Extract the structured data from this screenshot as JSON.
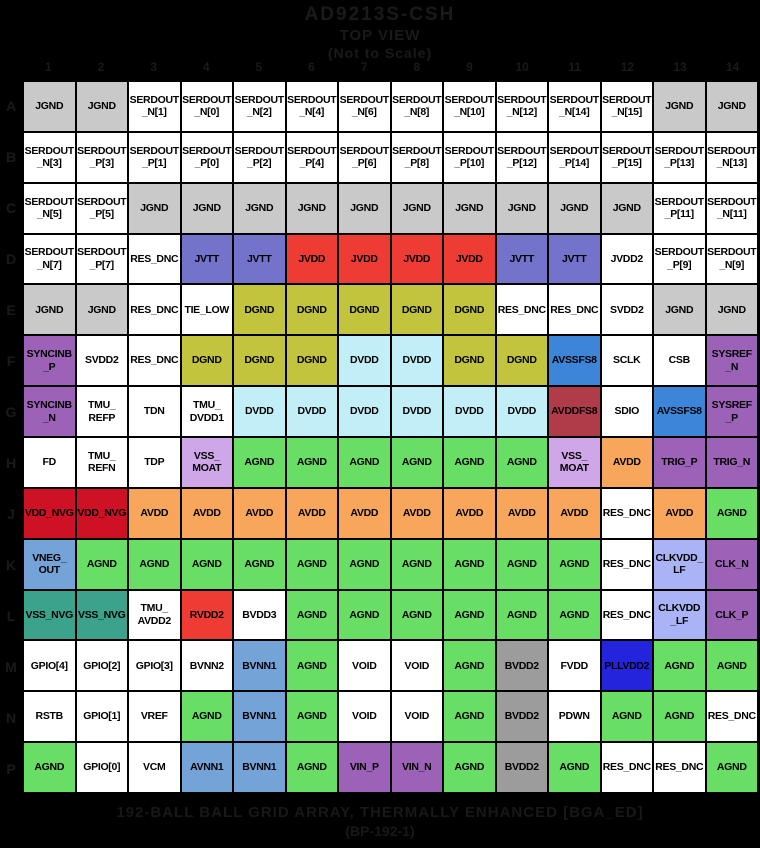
{
  "title": {
    "part": "AD9213S-CSH",
    "view": "TOP VIEW",
    "scale_note": "(Not to Scale)"
  },
  "footer": {
    "line1": "192-BALL BALL GRID ARRAY, THERMALLY ENHANCED [BGA_ED]",
    "line2": "(BP-192-1)"
  },
  "columns": [
    "1",
    "2",
    "3",
    "4",
    "5",
    "6",
    "7",
    "8",
    "9",
    "10",
    "11",
    "12",
    "13",
    "14"
  ],
  "rows": [
    "A",
    "B",
    "C",
    "D",
    "E",
    "F",
    "G",
    "H",
    "J",
    "K",
    "L",
    "M",
    "N",
    "P"
  ],
  "palette": {
    "gray": "#c9c9c9",
    "white": "#ffffff",
    "violet": "#7473cb",
    "red": "#ee3b33",
    "olive": "#c3c43e",
    "cyan": "#c2eef8",
    "purple": "#9c62b8",
    "blue": "#3c85d8",
    "maroon": "#b03c4a",
    "lilac": "#cfa6e8",
    "green": "#68de64",
    "orange": "#f7a65b",
    "crimson": "#ce1124",
    "steel": "#74a3d8",
    "teal": "#3ba38b",
    "periwinkle": "#a9b3f5",
    "darkgray": "#9c9c9c",
    "navy": "#2424dd"
  },
  "grid": {
    "labels": [
      [
        "JGND",
        "JGND",
        "SERDOUT\n_N[1]",
        "SERDOUT\n_N[0]",
        "SERDOUT\n_N[2]",
        "SERDOUT\n_N[4]",
        "SERDOUT\n_N[6]",
        "SERDOUT\n_N[8]",
        "SERDOUT\n_N[10]",
        "SERDOUT\n_N[12]",
        "SERDOUT\n_N[14]",
        "SERDOUT\n_N[15]",
        "JGND",
        "JGND"
      ],
      [
        "SERDOUT\n_N[3]",
        "SERDOUT\n_P[3]",
        "SERDOUT\n_P[1]",
        "SERDOUT\n_P[0]",
        "SERDOUT\n_P[2]",
        "SERDOUT\n_P[4]",
        "SERDOUT\n_P[6]",
        "SERDOUT\n_P[8]",
        "SERDOUT\n_P[10]",
        "SERDOUT\n_P[12]",
        "SERDOUT\n_P[14]",
        "SERDOUT\n_P[15]",
        "SERDOUT\n_P[13]",
        "SERDOUT\n_N[13]"
      ],
      [
        "SERDOUT\n_N[5]",
        "SERDOUT\n_P[5]",
        "JGND",
        "JGND",
        "JGND",
        "JGND",
        "JGND",
        "JGND",
        "JGND",
        "JGND",
        "JGND",
        "JGND",
        "SERDOUT\n_P[11]",
        "SERDOUT\n_N[11]"
      ],
      [
        "SERDOUT\n_N[7]",
        "SERDOUT\n_P[7]",
        "RES_DNC",
        "JVTT",
        "JVTT",
        "JVDD",
        "JVDD",
        "JVDD",
        "JVDD",
        "JVTT",
        "JVTT",
        "JVDD2",
        "SERDOUT\n_P[9]",
        "SERDOUT\n_N[9]"
      ],
      [
        "JGND",
        "JGND",
        "RES_DNC",
        "TIE_LOW",
        "DGND",
        "DGND",
        "DGND",
        "DGND",
        "DGND",
        "RES_DNC",
        "RES_DNC",
        "SVDD2",
        "JGND",
        "JGND"
      ],
      [
        "SYNCINB\n_P",
        "SVDD2",
        "RES_DNC",
        "DGND",
        "DGND",
        "DGND",
        "DVDD",
        "DVDD",
        "DGND",
        "DGND",
        "AVSSFS8",
        "SCLK",
        "CSB",
        "SYSREF\n_N"
      ],
      [
        "SYNCINB\n_N",
        "TMU_\nREFP",
        "TDN",
        "TMU_\nDVDD1",
        "DVDD",
        "DVDD",
        "DVDD",
        "DVDD",
        "DVDD",
        "DVDD",
        "AVDDFS8",
        "SDIO",
        "AVSSFS8",
        "SYSREF\n_P"
      ],
      [
        "FD",
        "TMU_\nREFN",
        "TDP",
        "VSS_\nMOAT",
        "AGND",
        "AGND",
        "AGND",
        "AGND",
        "AGND",
        "AGND",
        "VSS_\nMOAT",
        "AVDD",
        "TRIG_P",
        "TRIG_N"
      ],
      [
        "VDD_NVG",
        "VDD_NVG",
        "AVDD",
        "AVDD",
        "AVDD",
        "AVDD",
        "AVDD",
        "AVDD",
        "AVDD",
        "AVDD",
        "AVDD",
        "RES_DNC",
        "AVDD",
        "AGND"
      ],
      [
        "VNEG_\nOUT",
        "AGND",
        "AGND",
        "AGND",
        "AGND",
        "AGND",
        "AGND",
        "AGND",
        "AGND",
        "AGND",
        "AGND",
        "RES_DNC",
        "CLKVDD_\nLF",
        "CLK_N"
      ],
      [
        "VSS_NVG",
        "VSS_NVG",
        "TMU_\nAVDD2",
        "RVDD2",
        "BVDD3",
        "AGND",
        "AGND",
        "AGND",
        "AGND",
        "AGND",
        "AGND",
        "RES_DNC",
        "CLKVDD\n_LF",
        "CLK_P"
      ],
      [
        "GPIO[4]",
        "GPIO[2]",
        "GPIO[3]",
        "BVNN2",
        "BVNN1",
        "AGND",
        "VOID",
        "VOID",
        "AGND",
        "BVDD2",
        "FVDD",
        "PLLVDD2",
        "AGND",
        "AGND"
      ],
      [
        "RSTB",
        "GPIO[1]",
        "VREF",
        "AGND",
        "BVNN1",
        "AGND",
        "VOID",
        "VOID",
        "AGND",
        "BVDD2",
        "PDWN",
        "AGND",
        "AGND",
        "RES_DNC"
      ],
      [
        "AGND",
        "GPIO[0]",
        "VCM",
        "AVNN1",
        "BVNN1",
        "AGND",
        "VIN_P",
        "VIN_N",
        "AGND",
        "BVDD2",
        "AGND",
        "RES_DNC",
        "RES_DNC",
        "AGND"
      ]
    ],
    "fills": [
      [
        "gray",
        "gray",
        "white",
        "white",
        "white",
        "white",
        "white",
        "white",
        "white",
        "white",
        "white",
        "white",
        "gray",
        "gray"
      ],
      [
        "white",
        "white",
        "white",
        "white",
        "white",
        "white",
        "white",
        "white",
        "white",
        "white",
        "white",
        "white",
        "white",
        "white"
      ],
      [
        "white",
        "white",
        "gray",
        "gray",
        "gray",
        "gray",
        "gray",
        "gray",
        "gray",
        "gray",
        "gray",
        "gray",
        "white",
        "white"
      ],
      [
        "white",
        "white",
        "white",
        "violet",
        "violet",
        "red",
        "red",
        "red",
        "red",
        "violet",
        "violet",
        "white",
        "white",
        "white"
      ],
      [
        "gray",
        "gray",
        "white",
        "white",
        "olive",
        "olive",
        "olive",
        "olive",
        "olive",
        "white",
        "white",
        "white",
        "gray",
        "gray"
      ],
      [
        "purple",
        "white",
        "white",
        "olive",
        "olive",
        "olive",
        "cyan",
        "cyan",
        "olive",
        "olive",
        "blue",
        "white",
        "white",
        "purple"
      ],
      [
        "purple",
        "white",
        "white",
        "white",
        "cyan",
        "cyan",
        "cyan",
        "cyan",
        "cyan",
        "cyan",
        "maroon",
        "white",
        "blue",
        "purple"
      ],
      [
        "white",
        "white",
        "white",
        "lilac",
        "green",
        "green",
        "green",
        "green",
        "green",
        "green",
        "lilac",
        "orange",
        "purple",
        "purple"
      ],
      [
        "crimson",
        "crimson",
        "orange",
        "orange",
        "orange",
        "orange",
        "orange",
        "orange",
        "orange",
        "orange",
        "orange",
        "white",
        "orange",
        "green"
      ],
      [
        "steel",
        "green",
        "green",
        "green",
        "green",
        "green",
        "green",
        "green",
        "green",
        "green",
        "green",
        "white",
        "periwinkle",
        "purple"
      ],
      [
        "teal",
        "teal",
        "white",
        "red",
        "white",
        "green",
        "green",
        "green",
        "green",
        "green",
        "green",
        "white",
        "periwinkle",
        "purple"
      ],
      [
        "white",
        "white",
        "white",
        "white",
        "steel",
        "green",
        "white",
        "white",
        "green",
        "darkgray",
        "white",
        "navy",
        "green",
        "green"
      ],
      [
        "white",
        "white",
        "white",
        "green",
        "steel",
        "green",
        "white",
        "white",
        "green",
        "darkgray",
        "white",
        "green",
        "green",
        "white"
      ],
      [
        "green",
        "white",
        "white",
        "steel",
        "steel",
        "green",
        "purple",
        "purple",
        "green",
        "darkgray",
        "green",
        "white",
        "white",
        "green"
      ]
    ]
  }
}
